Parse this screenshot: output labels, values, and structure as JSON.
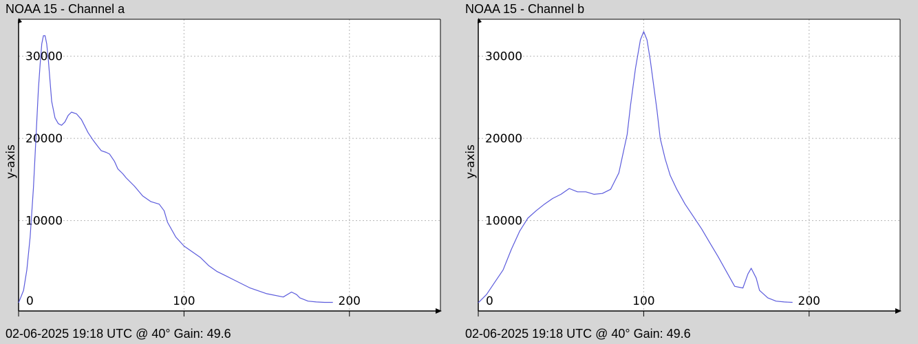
{
  "colors": {
    "background": "#d6d6d6",
    "plot_background": "#ffffff",
    "line": "#5a5adc",
    "grid": "#b4b4b4",
    "axis": "#000000"
  },
  "chart_data": [
    {
      "type": "line",
      "title": "NOAA 15 - Channel a",
      "footer": "02-06-2025 19:18 UTC @ 40° Gain: 49.6",
      "ylabel": "y-axis",
      "xlabel": "",
      "xlim": [
        0,
        255
      ],
      "ylim": [
        -1000,
        34500
      ],
      "xticks": [
        0,
        100,
        200
      ],
      "yticks": [
        10000,
        20000,
        30000
      ],
      "grid": true,
      "series": [
        {
          "x": [
            0,
            3,
            5,
            7,
            9,
            10,
            11,
            12,
            13,
            14,
            15,
            16,
            17,
            18,
            19,
            20,
            22,
            24,
            26,
            28,
            30,
            32,
            35,
            38,
            40,
            42,
            45,
            48,
            50,
            53,
            55,
            58,
            60,
            63,
            65,
            70,
            75,
            80,
            85,
            88,
            90,
            95,
            100,
            105,
            110,
            115,
            120,
            125,
            130,
            140,
            150,
            160,
            165,
            168,
            170,
            175,
            180,
            185,
            190
          ],
          "y": [
            0,
            1500,
            4000,
            8000,
            14000,
            18000,
            22000,
            26000,
            29000,
            31500,
            32500,
            32500,
            31500,
            29500,
            27000,
            24500,
            22500,
            21800,
            21600,
            22000,
            22800,
            23200,
            23000,
            22300,
            21500,
            20700,
            19800,
            19000,
            18500,
            18300,
            18100,
            17200,
            16300,
            15700,
            15200,
            14200,
            13000,
            12300,
            12000,
            11200,
            9800,
            8000,
            6900,
            6200,
            5500,
            4500,
            3800,
            3300,
            2800,
            1800,
            1100,
            700,
            1300,
            1000,
            600,
            200,
            100,
            50,
            50
          ]
        }
      ]
    },
    {
      "type": "line",
      "title": "NOAA 15 - Channel b",
      "footer": "02-06-2025 19:18 UTC @ 40° Gain: 49.6",
      "ylabel": "y-axis",
      "xlabel": "",
      "xlim": [
        0,
        255
      ],
      "ylim": [
        -1000,
        34500
      ],
      "xticks": [
        0,
        100,
        200
      ],
      "yticks": [
        10000,
        20000,
        30000
      ],
      "grid": true,
      "series": [
        {
          "x": [
            0,
            5,
            10,
            15,
            20,
            25,
            30,
            35,
            40,
            45,
            50,
            55,
            60,
            65,
            70,
            75,
            80,
            85,
            90,
            92,
            95,
            98,
            100,
            102,
            104,
            106,
            108,
            110,
            113,
            116,
            120,
            125,
            130,
            135,
            140,
            145,
            150,
            155,
            160,
            163,
            165,
            168,
            170,
            175,
            180,
            185,
            190
          ],
          "y": [
            0,
            1000,
            2500,
            4000,
            6500,
            8700,
            10300,
            11200,
            12000,
            12700,
            13200,
            13900,
            13500,
            13500,
            13200,
            13300,
            13800,
            15800,
            20500,
            24000,
            28500,
            32000,
            33000,
            32000,
            29500,
            26500,
            23500,
            20000,
            17500,
            15500,
            13800,
            12000,
            10500,
            9000,
            7300,
            5600,
            3800,
            2000,
            1800,
            3500,
            4200,
            3000,
            1500,
            600,
            200,
            100,
            50
          ]
        }
      ]
    }
  ]
}
